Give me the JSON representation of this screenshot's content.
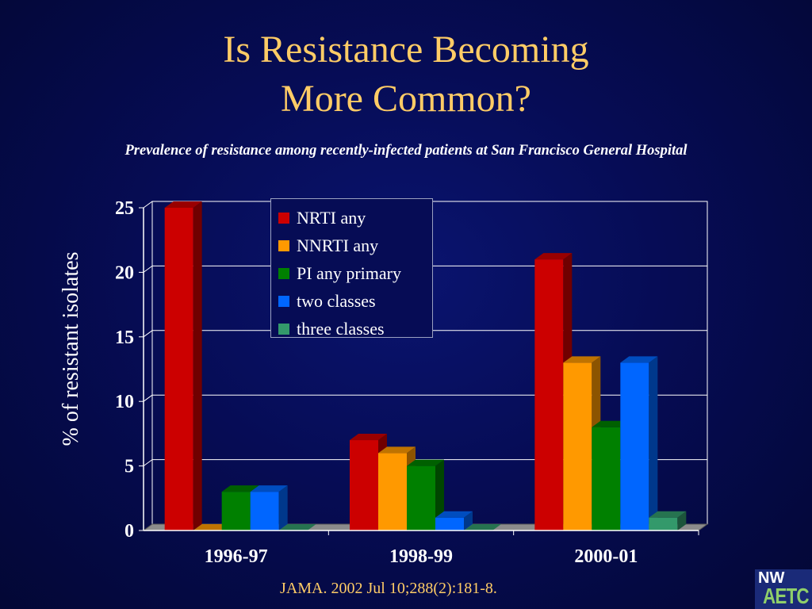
{
  "slide": {
    "title_line1": "Is Resistance Becoming",
    "title_line2": "More Common?",
    "subtitle": "Prevalence of resistance among recently-infected patients at San Francisco General Hospital",
    "source": "JAMA. 2002 Jul 10;288(2):181-8.",
    "logo": {
      "top": "NW",
      "bottom": "AETC"
    }
  },
  "colors": {
    "background": "#060c55",
    "title": "#ffcc66",
    "NRTI any": "#cc0000",
    "NNRTI any": "#ff9900",
    "PI any primary": "#008000",
    "two classes": "#0066ff",
    "three classes": "#33996b"
  },
  "chart_data": {
    "type": "bar",
    "style": "3d-clustered",
    "title": "",
    "xlabel": "",
    "ylabel": "% of resistant isolates",
    "ylim": [
      0,
      25
    ],
    "yticks": [
      "0",
      "5",
      "10",
      "15",
      "20",
      "25"
    ],
    "grid": true,
    "legend_position": "top-center",
    "categories": [
      "1996-97",
      "1998-99",
      "2000-01"
    ],
    "series": [
      {
        "name": "NRTI any",
        "values": [
          25,
          7,
          21
        ]
      },
      {
        "name": "NNRTI any",
        "values": [
          0,
          6,
          13
        ]
      },
      {
        "name": "PI any primary",
        "values": [
          3,
          5,
          8
        ]
      },
      {
        "name": "two classes",
        "values": [
          3,
          1,
          13
        ]
      },
      {
        "name": "three classes",
        "values": [
          0,
          0,
          1
        ]
      }
    ]
  }
}
